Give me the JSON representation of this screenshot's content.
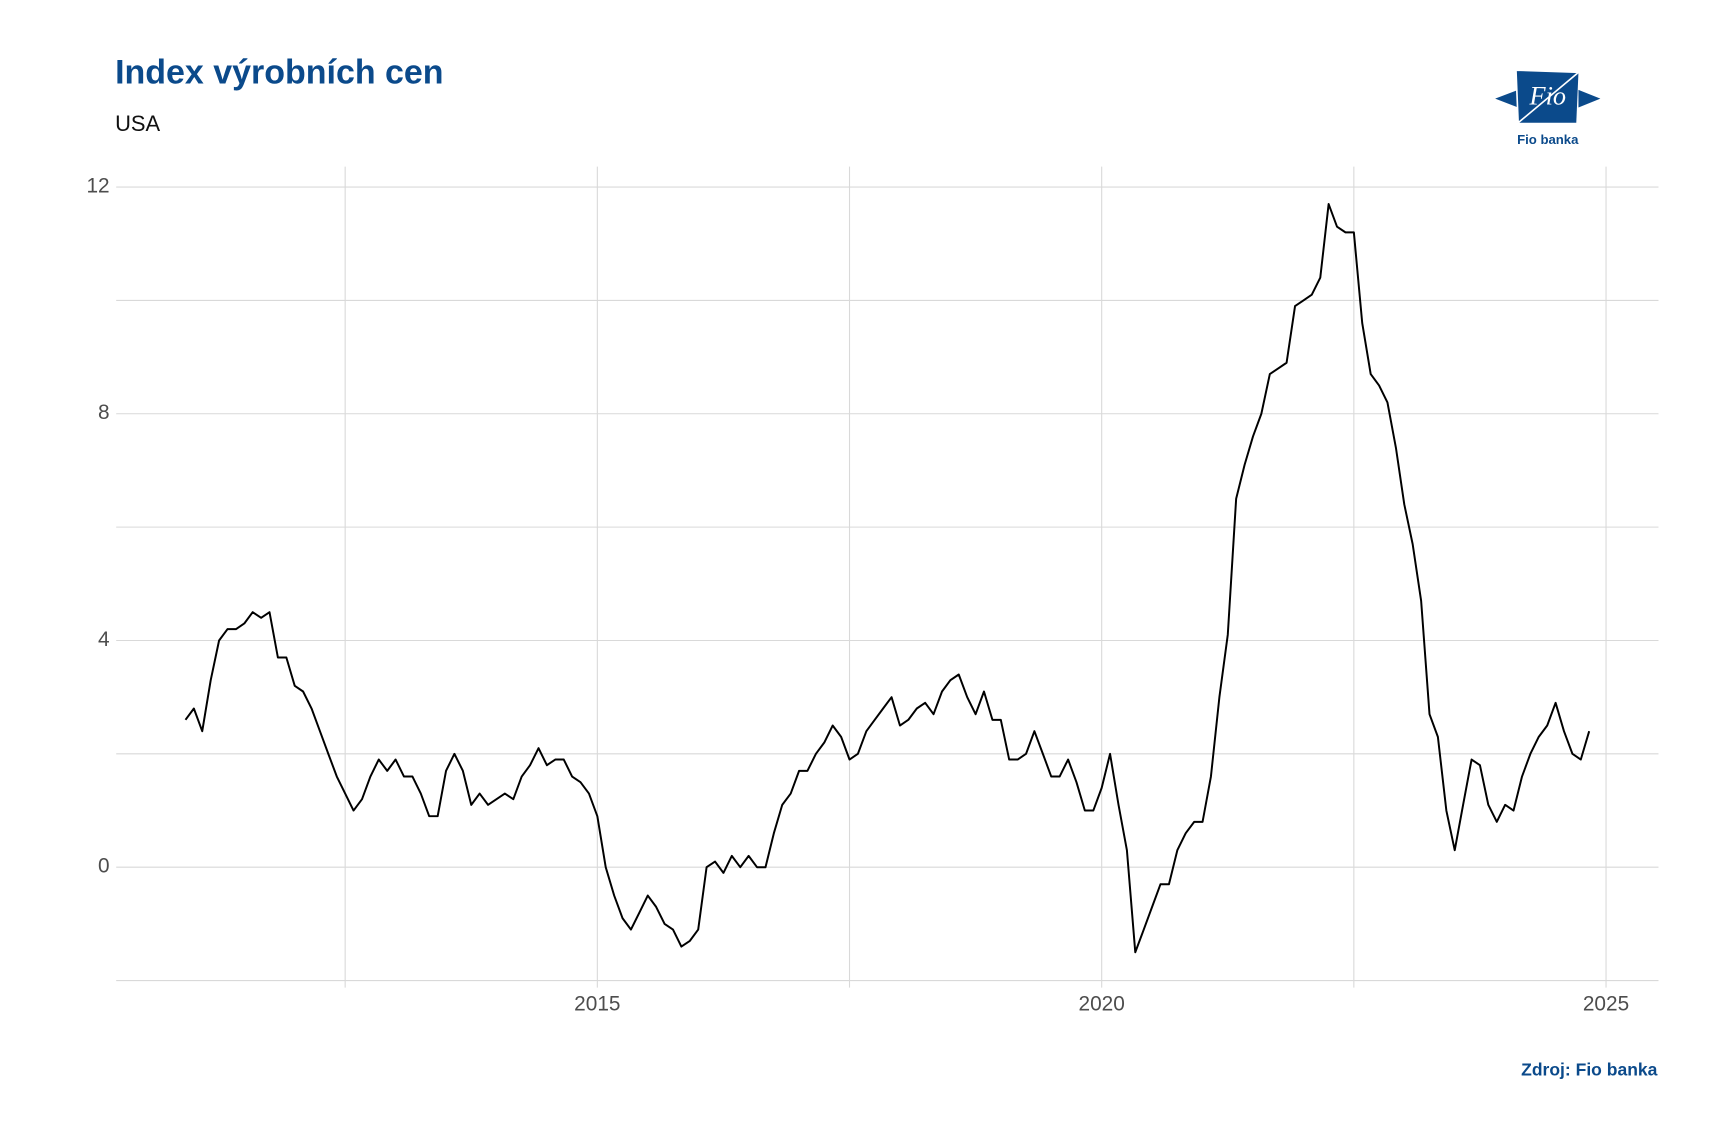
{
  "chart_data": {
    "type": "line",
    "title": "Index výrobních cen",
    "subtitle": "USA",
    "source": "Zdroj: Fio banka",
    "logo": {
      "text": "Fio",
      "caption": "Fio banka"
    },
    "color": "#000000",
    "grid": true,
    "xlim": [
      2010.23,
      2025.52
    ],
    "xticks": [
      2015,
      2020,
      2025
    ],
    "minor_xticks": [
      2012.5,
      2017.5,
      2022.5
    ],
    "ylim": [
      -1.97,
      12.36
    ],
    "yticks": [
      0,
      4,
      8,
      12
    ],
    "minor_yticks": [
      -2,
      2,
      6,
      10
    ],
    "x": [
      2010.917,
      2011.0,
      2011.083,
      2011.167,
      2011.25,
      2011.333,
      2011.417,
      2011.5,
      2011.583,
      2011.667,
      2011.75,
      2011.833,
      2011.917,
      2012.0,
      2012.083,
      2012.167,
      2012.25,
      2012.333,
      2012.417,
      2012.5,
      2012.583,
      2012.667,
      2012.75,
      2012.833,
      2012.917,
      2013.0,
      2013.083,
      2013.167,
      2013.25,
      2013.333,
      2013.417,
      2013.5,
      2013.583,
      2013.667,
      2013.75,
      2013.833,
      2013.917,
      2014.0,
      2014.083,
      2014.167,
      2014.25,
      2014.333,
      2014.417,
      2014.5,
      2014.583,
      2014.667,
      2014.75,
      2014.833,
      2014.917,
      2015.0,
      2015.083,
      2015.167,
      2015.25,
      2015.333,
      2015.417,
      2015.5,
      2015.583,
      2015.667,
      2015.75,
      2015.833,
      2015.917,
      2016.0,
      2016.083,
      2016.167,
      2016.25,
      2016.333,
      2016.417,
      2016.5,
      2016.583,
      2016.667,
      2016.75,
      2016.833,
      2016.917,
      2017.0,
      2017.083,
      2017.167,
      2017.25,
      2017.333,
      2017.417,
      2017.5,
      2017.583,
      2017.667,
      2017.75,
      2017.833,
      2017.917,
      2018.0,
      2018.083,
      2018.167,
      2018.25,
      2018.333,
      2018.417,
      2018.5,
      2018.583,
      2018.667,
      2018.75,
      2018.833,
      2018.917,
      2019.0,
      2019.083,
      2019.167,
      2019.25,
      2019.333,
      2019.417,
      2019.5,
      2019.583,
      2019.667,
      2019.75,
      2019.833,
      2019.917,
      2020.0,
      2020.083,
      2020.167,
      2020.25,
      2020.333,
      2020.417,
      2020.5,
      2020.583,
      2020.667,
      2020.75,
      2020.833,
      2020.917,
      2021.0,
      2021.083,
      2021.167,
      2021.25,
      2021.333,
      2021.417,
      2021.5,
      2021.583,
      2021.667,
      2021.75,
      2021.833,
      2021.917,
      2022.0,
      2022.083,
      2022.167,
      2022.25,
      2022.333,
      2022.417,
      2022.5,
      2022.583,
      2022.667,
      2022.75,
      2022.833,
      2022.917,
      2023.0,
      2023.083,
      2023.167,
      2023.25,
      2023.333,
      2023.417,
      2023.5,
      2023.583,
      2023.667,
      2023.75,
      2023.833,
      2023.917,
      2024.0,
      2024.083,
      2024.167,
      2024.25,
      2024.333,
      2024.417,
      2024.5,
      2024.583,
      2024.667,
      2024.75,
      2024.833
    ],
    "values": [
      2.6,
      2.8,
      2.4,
      3.3,
      4.0,
      4.2,
      4.2,
      4.3,
      4.5,
      4.4,
      4.5,
      3.7,
      3.7,
      3.2,
      3.1,
      2.8,
      2.4,
      2.0,
      1.6,
      1.3,
      1.0,
      1.2,
      1.6,
      1.9,
      1.7,
      1.9,
      1.6,
      1.6,
      1.3,
      0.9,
      0.9,
      1.7,
      2.0,
      1.7,
      1.1,
      1.3,
      1.1,
      1.2,
      1.3,
      1.2,
      1.6,
      1.8,
      2.1,
      1.8,
      1.9,
      1.9,
      1.6,
      1.5,
      1.3,
      0.9,
      0.0,
      -0.5,
      -0.9,
      -1.1,
      -0.8,
      -0.5,
      -0.7,
      -1.0,
      -1.1,
      -1.4,
      -1.3,
      -1.1,
      0.0,
      0.1,
      -0.1,
      0.2,
      0.0,
      0.2,
      0.0,
      0.0,
      0.6,
      1.1,
      1.3,
      1.7,
      1.7,
      2.0,
      2.2,
      2.5,
      2.3,
      1.9,
      2.0,
      2.4,
      2.6,
      2.8,
      3.0,
      2.5,
      2.6,
      2.8,
      2.9,
      2.7,
      3.1,
      3.3,
      3.4,
      3.0,
      2.7,
      3.1,
      2.6,
      2.6,
      1.9,
      1.9,
      2.0,
      2.4,
      2.0,
      1.6,
      1.6,
      1.9,
      1.5,
      1.0,
      1.0,
      1.4,
      2.0,
      1.1,
      0.3,
      -1.5,
      -1.1,
      -0.7,
      -0.3,
      -0.3,
      0.3,
      0.6,
      0.8,
      0.8,
      1.6,
      3.0,
      4.1,
      6.5,
      7.1,
      7.6,
      8.0,
      8.7,
      8.8,
      8.9,
      9.9,
      10.0,
      10.1,
      10.4,
      11.7,
      11.3,
      11.2,
      11.2,
      9.6,
      8.7,
      8.5,
      8.2,
      7.4,
      6.4,
      5.7,
      4.7,
      2.7,
      2.3,
      1.0,
      0.3,
      1.1,
      1.9,
      1.8,
      1.1,
      0.8,
      1.1,
      1.0,
      1.6,
      2.0,
      2.3,
      2.5,
      2.9,
      2.4,
      2.0,
      1.9,
      2.4
    ]
  }
}
